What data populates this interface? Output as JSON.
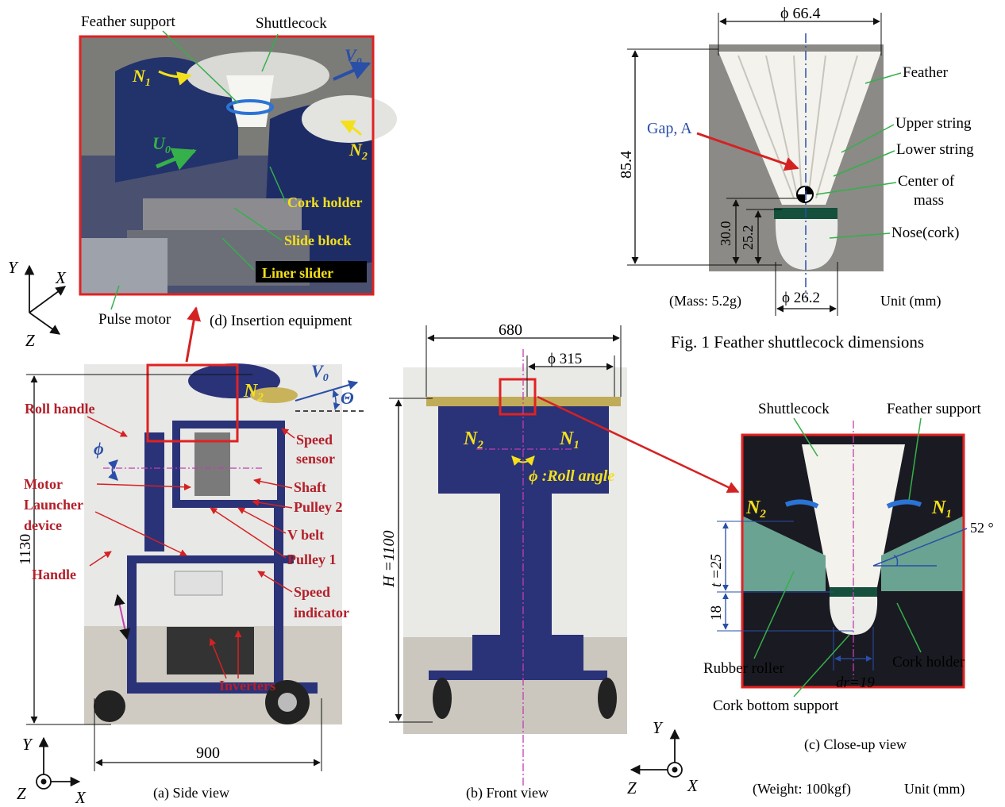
{
  "fig1": {
    "caption": "Fig. 1    Feather shuttlecock dimensions",
    "dim_width": "ϕ 66.4",
    "dim_height": "85.4",
    "dim_30": "30.0",
    "dim_25": "25.2",
    "dim_base": "ϕ 26.2",
    "mass": "(Mass: 5.2g)",
    "unit": "Unit (mm)",
    "gap_label": "Gap, A",
    "labels": [
      "Feather",
      "Upper string",
      "Lower string",
      "Center of",
      "mass",
      "Nose(cork)"
    ]
  },
  "panel_d": {
    "caption": "(d) Insertion equipment",
    "feather_support": "Feather support",
    "shuttlecock": "Shuttlecock",
    "v0": "V",
    "v0_sub": "0",
    "u0": "U",
    "u0_sub": "0",
    "n1": "N",
    "n1_sub": "1",
    "n2": "N",
    "n2_sub": "2",
    "cork_holder": "Cork holder",
    "slide_block": "Slide block",
    "liner_slider": "Liner slider",
    "pulse_motor": "Pulse motor",
    "axis_x": "X",
    "axis_y": "Y",
    "axis_z": "Z"
  },
  "panel_a": {
    "caption": "(a) Side view",
    "dim_height": "1130",
    "dim_width": "900",
    "theta": "Θ",
    "phi": "ϕ",
    "labels": [
      "Roll handle",
      "Motor",
      "Launcher",
      "device",
      "Handle",
      "Speed",
      "sensor",
      "Shaft",
      "Pulley 2",
      "V belt",
      "Pulley 1",
      "Speed",
      "indicator",
      "Inverters"
    ],
    "axis_x": "X",
    "axis_y": "Y",
    "axis_z": "Z"
  },
  "panel_b": {
    "caption": "(b) Front view",
    "dim_width": "680",
    "dim_roller": "ϕ 315",
    "dim_height": "H =1100",
    "roll_angle": "ϕ :Roll angle",
    "axis_x": "X",
    "axis_y": "Y",
    "axis_z": "Z"
  },
  "panel_c": {
    "caption": "(c) Close-up view",
    "shuttlecock": "Shuttlecock",
    "feather_support": "Feather support",
    "angle": "52 °",
    "dim_t": "t =25",
    "dim_18": "18",
    "dim_dr": "dr=19",
    "rubber_roller": "Rubber roller",
    "cork_holder": "Cork holder",
    "cork_bottom": "Cork bottom support",
    "weight": "(Weight: 100kgf)",
    "unit": "Unit (mm)"
  }
}
